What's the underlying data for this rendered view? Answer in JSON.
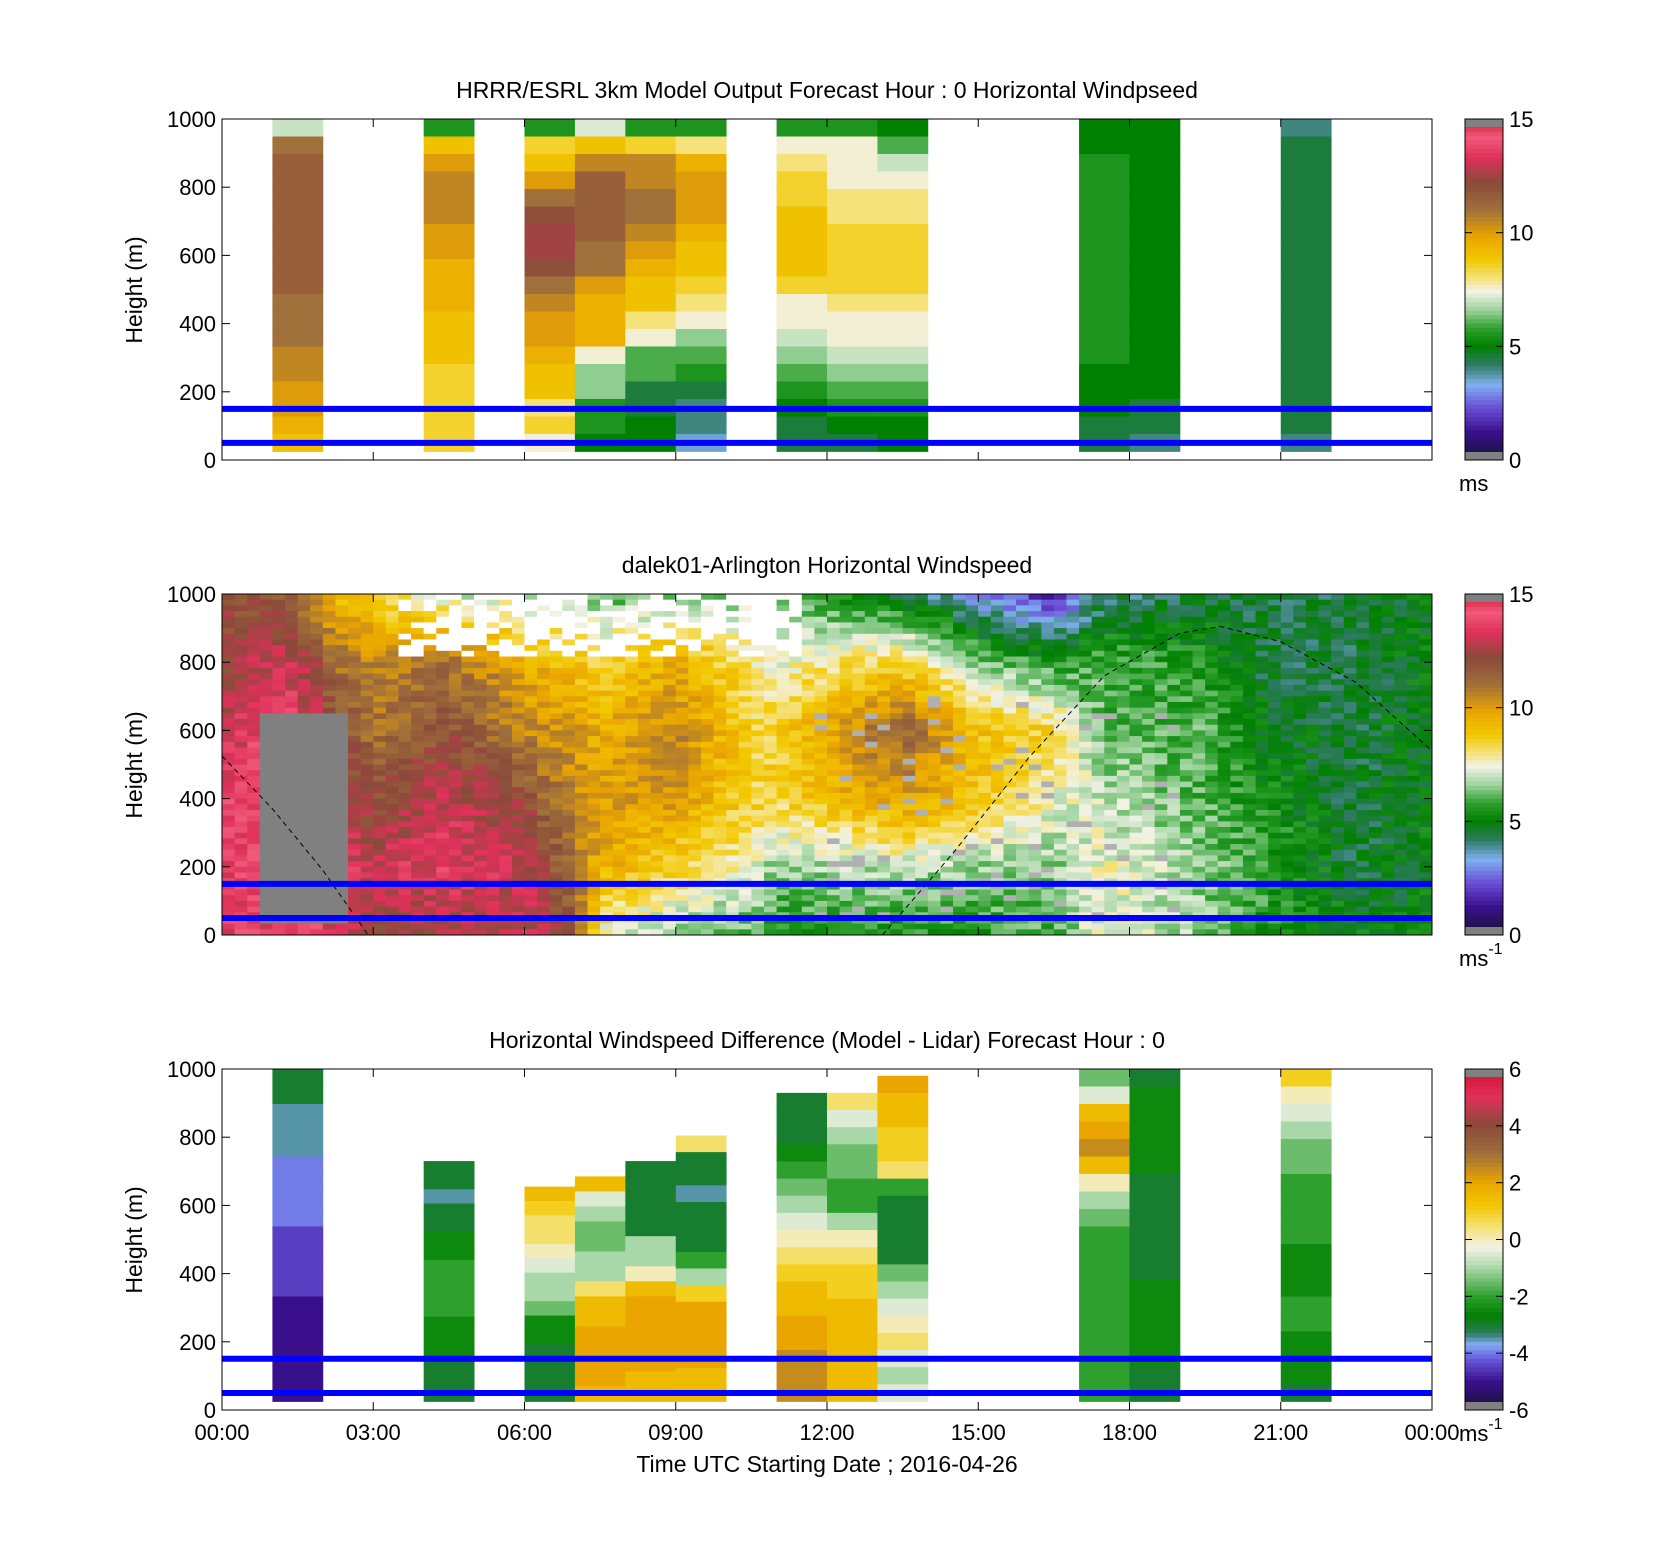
{
  "figure": {
    "xlabel": "Time UTC  Starting Date ; 2016-04-26",
    "x_ticks": [
      "00:00",
      "03:00",
      "06:00",
      "09:00",
      "12:00",
      "15:00",
      "18:00",
      "21:00",
      "00:00"
    ]
  },
  "chart_data": [
    {
      "type": "heatmap",
      "title": "HRRR/ESRL 3km Model Output   Forecast Hour : 0 Horizontal Windpseed",
      "ylabel": "Height (m)",
      "ylim": [
        0,
        1000
      ],
      "y_ticks": [
        "0",
        "200",
        "400",
        "600",
        "800",
        "1000"
      ],
      "xlim_hours": [
        0,
        24
      ],
      "colorbar": {
        "range": [
          0,
          15
        ],
        "ticks": [
          "0",
          "5",
          "10",
          "15"
        ],
        "unit": "ms",
        "unit_sup": ""
      },
      "reference_lines_m": [
        50,
        150
      ],
      "columns": [
        {
          "hour": 1.0,
          "top": 1000,
          "bottom": 25,
          "values": [
            7,
            11,
            11.5,
            11.5,
            11.5,
            11.5,
            11.5,
            11.5,
            11.5,
            11.5,
            11,
            11,
            11,
            10.5,
            10.5,
            10,
            10,
            9.5,
            9
          ]
        },
        {
          "hour": 4.0,
          "top": 1000,
          "bottom": 25,
          "values": [
            5.5,
            9,
            10,
            10.5,
            10.5,
            10.5,
            10,
            10,
            9.5,
            9.5,
            9.5,
            9,
            9,
            9,
            8.5,
            8.5,
            8.5,
            8.5,
            8.5
          ]
        },
        {
          "hour": 6.0,
          "top": 1000,
          "bottom": 25,
          "values": [
            5.5,
            8.5,
            9,
            10,
            11,
            12,
            12.5,
            12.5,
            12,
            11,
            10.5,
            10,
            10,
            9.5,
            9,
            9,
            8,
            8.5,
            7.5
          ]
        },
        {
          "hour": 7.0,
          "top": 1000,
          "bottom": 25,
          "values": [
            7.2,
            9,
            10.5,
            11.5,
            11.5,
            11.5,
            11.5,
            11,
            11,
            10,
            9.5,
            9.5,
            9.5,
            7.5,
            6.5,
            6.5,
            5.5,
            5.5,
            5
          ]
        },
        {
          "hour": 8.0,
          "top": 1000,
          "bottom": 25,
          "values": [
            5.5,
            8.5,
            10.5,
            10.5,
            11,
            11,
            10.5,
            10,
            9.5,
            9,
            9,
            8,
            7.5,
            6,
            6,
            4.5,
            4.5,
            5,
            5
          ]
        },
        {
          "hour": 9.0,
          "top": 1000,
          "bottom": 25,
          "values": [
            5.5,
            8,
            9.5,
            10,
            10,
            10,
            9.5,
            9,
            9,
            8.5,
            8,
            7.5,
            6.5,
            6,
            5.5,
            4.5,
            4,
            4,
            3.5
          ]
        },
        {
          "hour": 11.0,
          "top": 1000,
          "bottom": 25,
          "values": [
            5.5,
            7.5,
            8,
            8.5,
            8.5,
            9,
            9,
            9,
            9,
            8.5,
            7.5,
            7.5,
            7,
            6.5,
            6,
            5.5,
            5,
            4.5,
            4.5
          ]
        },
        {
          "hour": 12.0,
          "top": 1000,
          "bottom": 25,
          "values": [
            5.5,
            7.5,
            7.5,
            7.5,
            8,
            8,
            8.5,
            8.5,
            8.5,
            8.5,
            8,
            7.5,
            7.5,
            7,
            6.5,
            6,
            5.5,
            5,
            4.5
          ]
        },
        {
          "hour": 13.0,
          "top": 1000,
          "bottom": 25,
          "values": [
            5,
            6,
            7,
            7.5,
            8,
            8,
            8.5,
            8.5,
            8.5,
            8.5,
            8,
            7.5,
            7.5,
            7,
            6.5,
            6,
            5.5,
            5,
            5
          ]
        },
        {
          "hour": 17.0,
          "top": 1000,
          "bottom": 25,
          "values": [
            5,
            5,
            5.5,
            5.5,
            5.5,
            5.5,
            5.5,
            5.5,
            5.5,
            5.5,
            5.5,
            5.5,
            5.5,
            5.5,
            5,
            5,
            5,
            4.5,
            4.5
          ]
        },
        {
          "hour": 18.0,
          "top": 1000,
          "bottom": 25,
          "values": [
            5,
            5,
            5,
            5,
            5,
            5,
            5,
            5,
            5,
            5,
            5,
            5,
            5,
            5,
            5,
            5,
            4.5,
            4.5,
            4
          ]
        },
        {
          "hour": 21.0,
          "top": 1000,
          "bottom": 25,
          "values": [
            4,
            4.5,
            4.5,
            4.5,
            4.5,
            4.5,
            4.5,
            4.5,
            4.5,
            4.5,
            4.5,
            4.5,
            4.5,
            4.5,
            4.5,
            4.5,
            4.5,
            4.5,
            4
          ]
        }
      ]
    },
    {
      "type": "heatmap",
      "title": "dalek01-Arlington  Horizontal Windspeed",
      "ylabel": "Height (m)",
      "ylim": [
        0,
        1000
      ],
      "y_ticks": [
        "0",
        "200",
        "400",
        "600",
        "800",
        "1000"
      ],
      "xlim_hours": [
        0,
        24
      ],
      "colorbar": {
        "range": [
          0,
          15
        ],
        "ticks": [
          "0",
          "5",
          "10",
          "15"
        ],
        "unit": "ms",
        "unit_sup": "-1"
      },
      "reference_lines_m": [
        50,
        150
      ],
      "regime_anchors": [
        {
          "hour": 0.0,
          "profile": [
            13.5,
            13.5,
            13.5,
            13,
            12,
            12
          ]
        },
        {
          "hour": 0.75,
          "profile": [
            13.5,
            14,
            14,
            13.5,
            13,
            12
          ]
        },
        {
          "hour": 1.5,
          "profile": [
            14,
            14,
            14,
            13.5,
            13,
            11
          ]
        },
        {
          "hour": 2.3,
          "profile": [
            13,
            13.5,
            13,
            12,
            11,
            9
          ]
        },
        {
          "hour": 3.0,
          "profile": [
            12.5,
            13,
            12,
            11,
            10.5,
            8.5
          ]
        },
        {
          "hour": 4.5,
          "profile": [
            12.5,
            13.5,
            13,
            12,
            11,
            7
          ]
        },
        {
          "hour": 6.0,
          "profile": [
            13,
            13,
            12,
            10.5,
            9.5,
            7
          ]
        },
        {
          "hour": 7.0,
          "profile": [
            12,
            11,
            10.5,
            10,
            9,
            6.5
          ]
        },
        {
          "hour": 7.5,
          "profile": [
            7.5,
            9.5,
            10,
            9.5,
            8.5,
            6
          ]
        },
        {
          "hour": 9.0,
          "profile": [
            6.5,
            8.5,
            10,
            10.5,
            9.5,
            6.5
          ]
        },
        {
          "hour": 10.5,
          "profile": [
            6,
            7.5,
            8.5,
            8.5,
            8,
            6.5
          ]
        },
        {
          "hour": 11.0,
          "profile": [
            5.5,
            6.5,
            8.5,
            8.5,
            7.5,
            6
          ]
        },
        {
          "hour": 13.5,
          "profile": [
            5.5,
            7,
            10,
            11.5,
            8.5,
            4.5
          ]
        },
        {
          "hour": 15.0,
          "profile": [
            5.5,
            6.5,
            9,
            9,
            6.5,
            3
          ]
        },
        {
          "hour": 16.5,
          "profile": [
            6,
            6.5,
            7.5,
            8.5,
            5.5,
            1.5
          ]
        },
        {
          "hour": 17.5,
          "profile": [
            7.5,
            7.5,
            7,
            6,
            6,
            4
          ]
        },
        {
          "hour": 19.5,
          "profile": [
            6.5,
            6.5,
            6,
            6,
            5.5,
            4.5
          ]
        },
        {
          "hour": 20.5,
          "profile": [
            5.5,
            6,
            5.5,
            5,
            4.5,
            4.5
          ]
        },
        {
          "hour": 22.5,
          "profile": [
            5,
            4.5,
            4.5,
            4.5,
            4.5,
            4.5
          ]
        },
        {
          "hour": 24.0,
          "profile": [
            5,
            5,
            5,
            5,
            5,
            5
          ]
        }
      ],
      "no_data_region": {
        "hour_start": 0.8,
        "hour_end": 2.6,
        "height_max_m": 650
      },
      "boundary_layer_curve": [
        {
          "hour": 0.0,
          "height": 525
        },
        {
          "hour": 1.0,
          "height": 370
        },
        {
          "hour": 2.0,
          "height": 190
        },
        {
          "hour": 2.9,
          "height": 0
        },
        {
          "hour": 13.1,
          "height": 0
        },
        {
          "hour": 14.5,
          "height": 240
        },
        {
          "hour": 16.0,
          "height": 520
        },
        {
          "hour": 17.5,
          "height": 760
        },
        {
          "hour": 19.0,
          "height": 885
        },
        {
          "hour": 19.8,
          "height": 905
        },
        {
          "hour": 21.0,
          "height": 860
        },
        {
          "hour": 22.5,
          "height": 740
        },
        {
          "hour": 24.0,
          "height": 540
        }
      ]
    },
    {
      "type": "heatmap",
      "title": "Horizontal Windspeed Difference (Model - Lidar) Forecast Hour : 0",
      "ylabel": "Height (m)",
      "ylim": [
        0,
        1000
      ],
      "y_ticks": [
        "0",
        "200",
        "400",
        "600",
        "800",
        "1000"
      ],
      "xlim_hours": [
        0,
        24
      ],
      "colorbar": {
        "range": [
          -6,
          6
        ],
        "ticks": [
          "-6",
          "-4",
          "-2",
          "0",
          "2",
          "4",
          "6"
        ],
        "unit": "ms",
        "unit_sup": "-1"
      },
      "reference_lines_m": [
        50,
        150
      ],
      "columns": [
        {
          "hour": 1.0,
          "top": 1000,
          "bottom": 25,
          "values": [
            -3,
            -3,
            -3.5,
            -3.5,
            -3.5,
            -4,
            -4,
            -4,
            -4,
            -4.5,
            -4.5,
            -4.5,
            -4.5,
            -5,
            -5,
            -5,
            -5,
            -5,
            -5
          ]
        },
        {
          "hour": 4.0,
          "top": 730,
          "bottom": 25,
          "values": [
            -3,
            -3,
            -3.5,
            -3,
            -3,
            -2.5,
            -2.5,
            -2,
            -2,
            -2,
            -2,
            -2.5,
            -2.5,
            -2.5,
            -3,
            -3,
            -3
          ]
        },
        {
          "hour": 6.0,
          "top": 655,
          "bottom": 25,
          "values": [
            1.5,
            1,
            0.5,
            0.5,
            0,
            -0.5,
            -1,
            -1,
            -1.5,
            -2.5,
            -2.5,
            -3,
            -3,
            -3,
            -3
          ]
        },
        {
          "hour": 7.0,
          "top": 685,
          "bottom": 25,
          "values": [
            1.5,
            -0.5,
            -1,
            -1.5,
            -1.5,
            -1,
            -1,
            0.5,
            1.5,
            1.5,
            2,
            2,
            2,
            2,
            1.5
          ]
        },
        {
          "hour": 8.0,
          "top": 730,
          "bottom": 25,
          "values": [
            -3,
            -3,
            -3,
            -3,
            -3,
            -1,
            -1,
            0,
            1.5,
            2,
            2,
            2,
            2,
            2,
            1.5,
            1.5
          ]
        },
        {
          "hour": 9.0,
          "top": 805,
          "bottom": 25,
          "values": [
            0.5,
            -3,
            -3,
            -3.5,
            -3,
            -3,
            -3,
            -2,
            -1,
            1,
            2,
            2,
            2,
            2,
            1.5,
            1.5
          ]
        },
        {
          "hour": 11.0,
          "top": 930,
          "bottom": 25,
          "values": [
            -3,
            -3,
            -3,
            -2.5,
            -2,
            -1.5,
            -1,
            -0.5,
            0,
            0.5,
            1,
            1.5,
            1.5,
            2,
            2,
            2.5,
            2.5,
            2.5
          ]
        },
        {
          "hour": 12.0,
          "top": 930,
          "bottom": 25,
          "values": [
            0.5,
            -0.5,
            -1,
            -1.5,
            -1.5,
            -2,
            -2,
            -1,
            0,
            0.5,
            1,
            1,
            1.5,
            1.5,
            1.5,
            1.5,
            1.5,
            1.5
          ]
        },
        {
          "hour": 13.0,
          "top": 980,
          "bottom": 25,
          "values": [
            2,
            1.5,
            1.5,
            1,
            1,
            0.5,
            -2,
            -3,
            -3,
            -3,
            -3,
            -1.5,
            -1,
            -0.5,
            0,
            0.5,
            -0.5,
            -1,
            -0.5
          ]
        },
        {
          "hour": 17.0,
          "top": 1000,
          "bottom": 25,
          "values": [
            -1.5,
            -0.5,
            1.5,
            2,
            2.5,
            1.5,
            0,
            -1,
            -1.5,
            -2,
            -2,
            -2,
            -2,
            -2,
            -2,
            -2,
            -2,
            -2,
            -2
          ]
        },
        {
          "hour": 18.0,
          "top": 1000,
          "bottom": 25,
          "values": [
            -3,
            -2.5,
            -2.5,
            -2.5,
            -2.5,
            -2.5,
            -3,
            -3,
            -3,
            -3,
            -3,
            -3,
            -2.5,
            -2.5,
            -2.5,
            -2.5,
            -2.5,
            -3,
            -3
          ]
        },
        {
          "hour": 21.0,
          "top": 1000,
          "bottom": 25,
          "values": [
            1,
            0,
            -0.5,
            -1,
            -1.5,
            -1.5,
            -2,
            -2,
            -2,
            -2,
            -2.5,
            -2.5,
            -2.5,
            -2,
            -2,
            -2.5,
            -2.5,
            -2.5,
            -3
          ]
        }
      ]
    }
  ],
  "palettes": {
    "windspeed": [
      [
        0,
        "#141432"
      ],
      [
        1.2,
        "#3a0f8c"
      ],
      [
        2.3,
        "#6a4fd6"
      ],
      [
        3.3,
        "#7fb0f0"
      ],
      [
        4.2,
        "#2d7a5e"
      ],
      [
        5.0,
        "#008000"
      ],
      [
        5.8,
        "#2ea02e"
      ],
      [
        6.6,
        "#9ed39e"
      ],
      [
        7.4,
        "#f2f2e6"
      ],
      [
        8.0,
        "#f5e27a"
      ],
      [
        8.8,
        "#f2c800"
      ],
      [
        9.8,
        "#eaa500"
      ],
      [
        11.0,
        "#a0703a"
      ],
      [
        12.2,
        "#8a4a3a"
      ],
      [
        13.3,
        "#e0305a"
      ],
      [
        14.2,
        "#f05a7a"
      ],
      [
        15,
        "#d4102e"
      ]
    ],
    "difference": [
      [
        -6,
        "#141432"
      ],
      [
        -5,
        "#3a0f8c"
      ],
      [
        -4.2,
        "#6a5ae0"
      ],
      [
        -3.7,
        "#7faef0"
      ],
      [
        -3.3,
        "#2d7a5e"
      ],
      [
        -2.7,
        "#008000"
      ],
      [
        -2.0,
        "#2ea02e"
      ],
      [
        -1.0,
        "#a8d8a8"
      ],
      [
        -0.3,
        "#f2f2e6"
      ],
      [
        0.4,
        "#f5e27a"
      ],
      [
        1.2,
        "#f2c800"
      ],
      [
        2.0,
        "#eaa500"
      ],
      [
        3.0,
        "#a0703a"
      ],
      [
        4.0,
        "#8a4a3a"
      ],
      [
        5.0,
        "#e0305a"
      ],
      [
        6,
        "#d4102e"
      ]
    ],
    "missing": "#808080",
    "reference_line": "#0000ff"
  }
}
